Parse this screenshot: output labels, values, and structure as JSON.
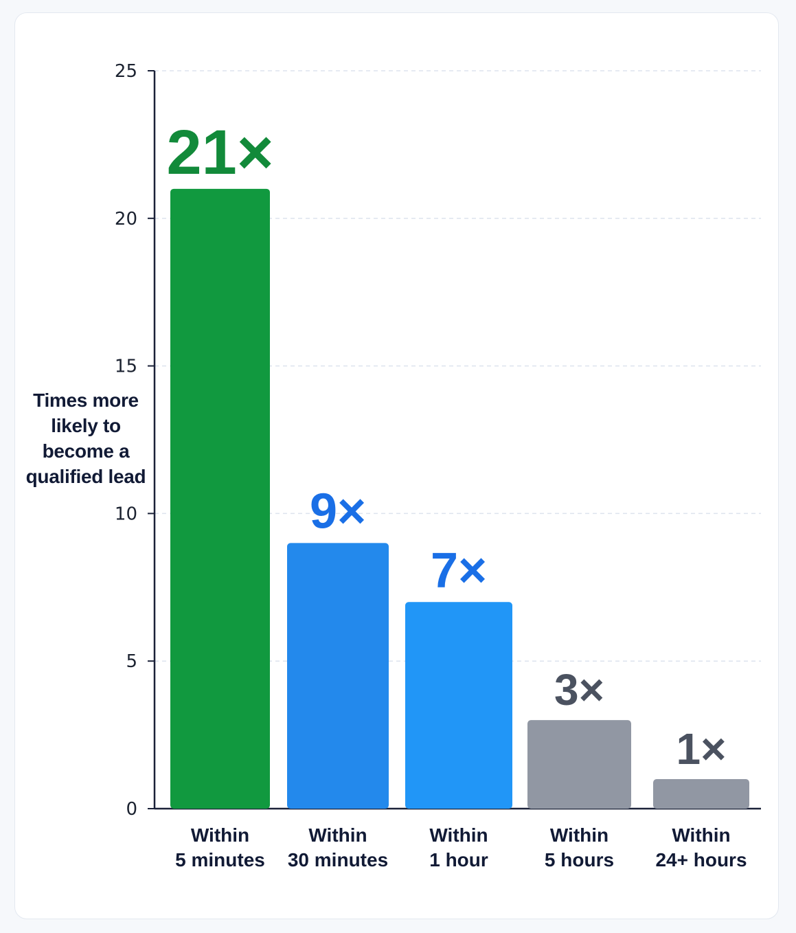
{
  "chart_data": {
    "type": "bar",
    "ylabel": "Times more likely to become a qualified lead",
    "xlabel": "",
    "ylim": [
      0,
      25
    ],
    "yticks": [
      0,
      5,
      10,
      15,
      20,
      25
    ],
    "grid": true,
    "categories": [
      [
        "Within",
        "5 minutes"
      ],
      [
        "Within",
        "30 minutes"
      ],
      [
        "Within",
        "1 hour"
      ],
      [
        "Within",
        "5 hours"
      ],
      [
        "Within",
        "24+ hours"
      ]
    ],
    "values": [
      21,
      9,
      7,
      3,
      1
    ],
    "data_labels": [
      "21×",
      "9×",
      "7×",
      "3×",
      "1×"
    ],
    "colors": {
      "bars": [
        "#11993f",
        "#2389ec",
        "#2196f7",
        "#9197a3",
        "#9197a3"
      ],
      "labels": [
        "#128a3a",
        "#1a6fe6",
        "#1a6fe6",
        "#4b5260",
        "#4b5260"
      ],
      "axis": "#1a2138",
      "grid": "#dde3ee"
    }
  }
}
